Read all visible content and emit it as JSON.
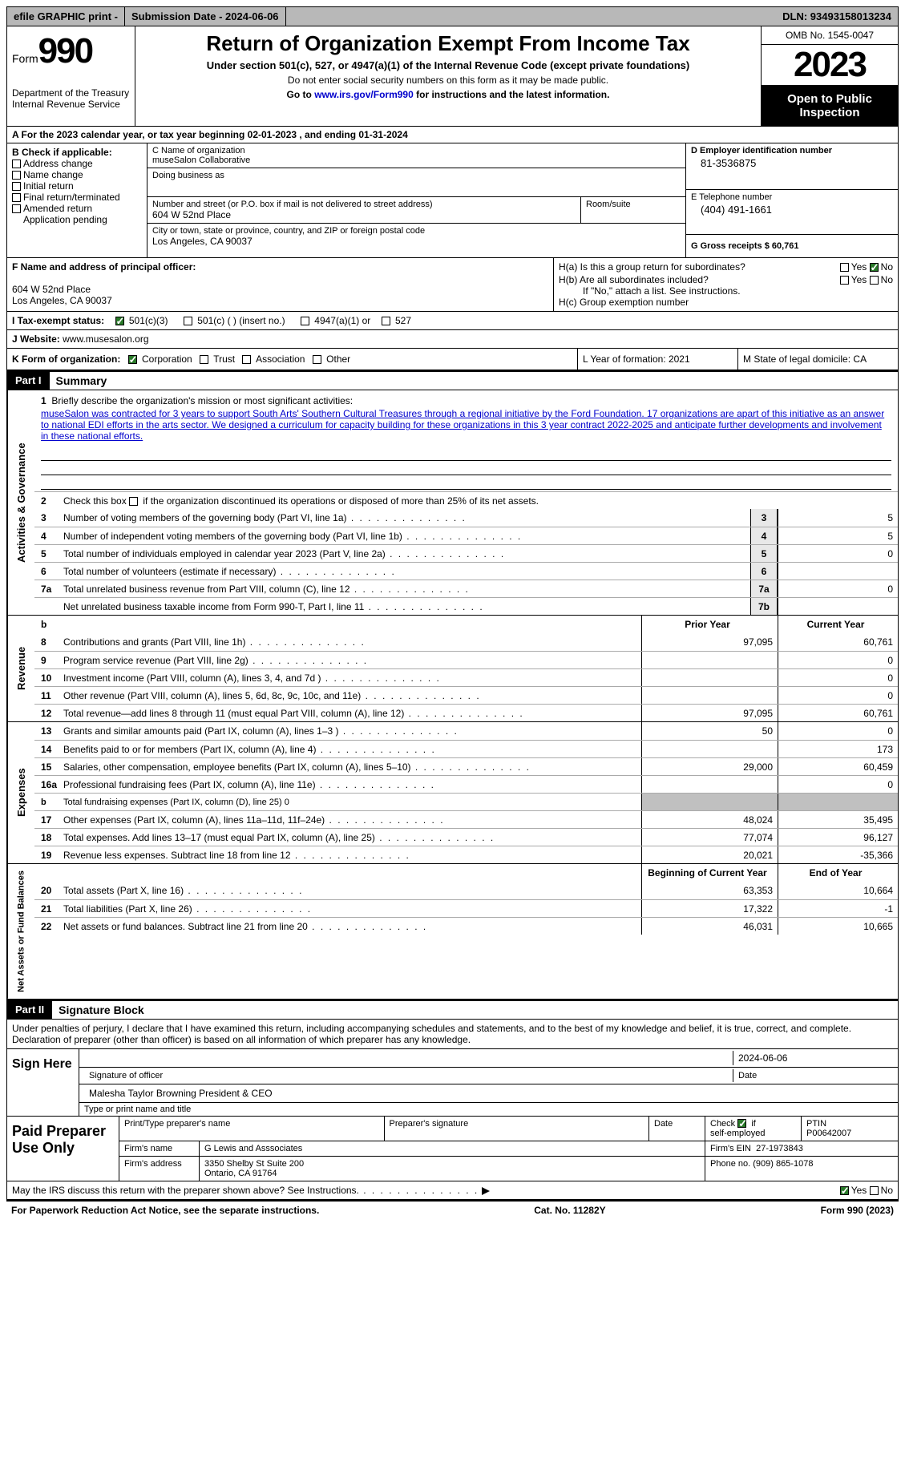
{
  "topbar": {
    "efile": "efile GRAPHIC print -",
    "submission_label": "Submission Date - 2024-06-06",
    "dln": "DLN: 93493158013234"
  },
  "header": {
    "form_word": "Form",
    "form_num": "990",
    "dept": "Department of the Treasury Internal Revenue Service",
    "title": "Return of Organization Exempt From Income Tax",
    "subtitle": "Under section 501(c), 527, or 4947(a)(1) of the Internal Revenue Code (except private foundations)",
    "warn": "Do not enter social security numbers on this form as it may be made public.",
    "goto_pre": "Go to ",
    "goto_link": "www.irs.gov/Form990",
    "goto_post": " for instructions and the latest information.",
    "omb": "OMB No. 1545-0047",
    "year": "2023",
    "inspection": "Open to Public Inspection"
  },
  "row_a": "A For the 2023 calendar year, or tax year beginning 02-01-2023   , and ending 01-31-2024",
  "col_b": {
    "head": "B Check if applicable:",
    "items": [
      "Address change",
      "Name change",
      "Initial return",
      "Final return/terminated",
      "Amended return",
      "Application pending"
    ]
  },
  "col_c": {
    "name_label": "C Name of organization",
    "name": "museSalon Collaborative",
    "dba_label": "Doing business as",
    "street_label": "Number and street (or P.O. box if mail is not delivered to street address)",
    "room_label": "Room/suite",
    "street": "604 W 52nd Place",
    "city_label": "City or town, state or province, country, and ZIP or foreign postal code",
    "city": "Los Angeles, CA  90037"
  },
  "col_d": {
    "ein_label": "D Employer identification number",
    "ein": "81-3536875",
    "phone_label": "E Telephone number",
    "phone": "(404) 491-1661",
    "gross_label": "G Gross receipts $ 60,761"
  },
  "fh": {
    "f_label": "F  Name and address of principal officer:",
    "f_addr1": "604 W 52nd Place",
    "f_addr2": "Los Angeles, CA  90037",
    "ha": "H(a)  Is this a group return for subordinates?",
    "hb": "H(b)  Are all subordinates included?",
    "hb_note": "If \"No,\" attach a list. See instructions.",
    "hc": "H(c)  Group exemption number",
    "yes": "Yes",
    "no": "No"
  },
  "i_row": {
    "label": "I   Tax-exempt status:",
    "opts": [
      "501(c)(3)",
      "501(c) (  ) (insert no.)",
      "4947(a)(1) or",
      "527"
    ]
  },
  "j_row": {
    "label": "J   Website:",
    "val": "  www.musesalon.org"
  },
  "klm": {
    "k": "K Form of organization:",
    "k_opts": [
      "Corporation",
      "Trust",
      "Association",
      "Other"
    ],
    "l": "L Year of formation: 2021",
    "m": "M State of legal domicile: CA"
  },
  "part1": {
    "hdr": "Part I",
    "title": "Summary",
    "mission_label": "Briefly describe the organization's mission or most significant activities:",
    "mission": "museSalon was contracted for 3 years to support South Arts' Southern Cultural Treasures through a regional initiative by the Ford Foundation. 17 organizations are apart of this initiative as an answer to national EDI efforts in the arts sector. We designed a curriculum for capacity building for these organizations in this 3 year contract 2022-2025 and anticipate further developments and involvement in these national efforts.",
    "line2": "Check this box      if the organization discontinued its operations or disposed of more than 25% of its net assets.",
    "vlabels": {
      "gov": "Activities & Governance",
      "rev": "Revenue",
      "exp": "Expenses",
      "net": "Net Assets or Fund Balances"
    }
  },
  "gov_lines": [
    {
      "n": "3",
      "d": "Number of voting members of the governing body (Part VI, line 1a)",
      "box": "3",
      "v": "5"
    },
    {
      "n": "4",
      "d": "Number of independent voting members of the governing body (Part VI, line 1b)",
      "box": "4",
      "v": "5"
    },
    {
      "n": "5",
      "d": "Total number of individuals employed in calendar year 2023 (Part V, line 2a)",
      "box": "5",
      "v": "0"
    },
    {
      "n": "6",
      "d": "Total number of volunteers (estimate if necessary)",
      "box": "6",
      "v": ""
    },
    {
      "n": "7a",
      "d": "Total unrelated business revenue from Part VIII, column (C), line 12",
      "box": "7a",
      "v": "0"
    },
    {
      "n": "",
      "d": "Net unrelated business taxable income from Form 990-T, Part I, line 11",
      "box": "7b",
      "v": ""
    }
  ],
  "col_hdrs": {
    "prior": "Prior Year",
    "current": "Current Year",
    "begin": "Beginning of Current Year",
    "end": "End of Year"
  },
  "rev_lines": [
    {
      "n": "8",
      "d": "Contributions and grants (Part VIII, line 1h)",
      "p": "97,095",
      "c": "60,761"
    },
    {
      "n": "9",
      "d": "Program service revenue (Part VIII, line 2g)",
      "p": "",
      "c": "0"
    },
    {
      "n": "10",
      "d": "Investment income (Part VIII, column (A), lines 3, 4, and 7d )",
      "p": "",
      "c": "0"
    },
    {
      "n": "11",
      "d": "Other revenue (Part VIII, column (A), lines 5, 6d, 8c, 9c, 10c, and 11e)",
      "p": "",
      "c": "0"
    },
    {
      "n": "12",
      "d": "Total revenue—add lines 8 through 11 (must equal Part VIII, column (A), line 12)",
      "p": "97,095",
      "c": "60,761"
    }
  ],
  "exp_lines": [
    {
      "n": "13",
      "d": "Grants and similar amounts paid (Part IX, column (A), lines 1–3 )",
      "p": "50",
      "c": "0"
    },
    {
      "n": "14",
      "d": "Benefits paid to or for members (Part IX, column (A), line 4)",
      "p": "",
      "c": "173"
    },
    {
      "n": "15",
      "d": "Salaries, other compensation, employee benefits (Part IX, column (A), lines 5–10)",
      "p": "29,000",
      "c": "60,459"
    },
    {
      "n": "16a",
      "d": "Professional fundraising fees (Part IX, column (A), line 11e)",
      "p": "",
      "c": "0"
    },
    {
      "n": "b",
      "d": "Total fundraising expenses (Part IX, column (D), line 25) 0",
      "p": "shade",
      "c": "shade",
      "small": true
    },
    {
      "n": "17",
      "d": "Other expenses (Part IX, column (A), lines 11a–11d, 11f–24e)",
      "p": "48,024",
      "c": "35,495"
    },
    {
      "n": "18",
      "d": "Total expenses. Add lines 13–17 (must equal Part IX, column (A), line 25)",
      "p": "77,074",
      "c": "96,127"
    },
    {
      "n": "19",
      "d": "Revenue less expenses. Subtract line 18 from line 12",
      "p": "20,021",
      "c": "-35,366"
    }
  ],
  "net_lines": [
    {
      "n": "20",
      "d": "Total assets (Part X, line 16)",
      "p": "63,353",
      "c": "10,664"
    },
    {
      "n": "21",
      "d": "Total liabilities (Part X, line 26)",
      "p": "17,322",
      "c": "-1"
    },
    {
      "n": "22",
      "d": "Net assets or fund balances. Subtract line 21 from line 20",
      "p": "46,031",
      "c": "10,665"
    }
  ],
  "part2": {
    "hdr": "Part II",
    "title": "Signature Block",
    "intro": "Under penalties of perjury, I declare that I have examined this return, including accompanying schedules and statements, and to the best of my knowledge and belief, it is true, correct, and complete. Declaration of preparer (other than officer) is based on all information of which preparer has any knowledge.",
    "sign_here": "Sign Here",
    "sig_officer": "Signature of officer",
    "date": "2024-06-06",
    "officer_name": "Malesha Taylor Browning  President & CEO",
    "type_name": "Type or print name and title",
    "paid": "Paid Preparer Use Only",
    "print_name_label": "Print/Type preparer's name",
    "prep_sig_label": "Preparer's signature",
    "date_label": "Date",
    "check_if": "Check",
    "self_emp": "self-employed",
    "if_word": "if",
    "ptin_label": "PTIN",
    "ptin": "P00642007",
    "firm_name_label": "Firm's name",
    "firm_name": "G Lewis and Asssociates",
    "firm_ein_label": "Firm's EIN",
    "firm_ein": "27-1973843",
    "firm_addr_label": "Firm's address",
    "firm_addr1": "3350 Shelby St Suite 200",
    "firm_addr2": "Ontario, CA  91764",
    "phone_label": "Phone no. (909) 865-1078",
    "discuss": "May the IRS discuss this return with the preparer shown above? See Instructions.",
    "paperwork": "For Paperwork Reduction Act Notice, see the separate instructions.",
    "cat": "Cat. No. 11282Y",
    "form_foot": "Form 990 (2023)"
  }
}
